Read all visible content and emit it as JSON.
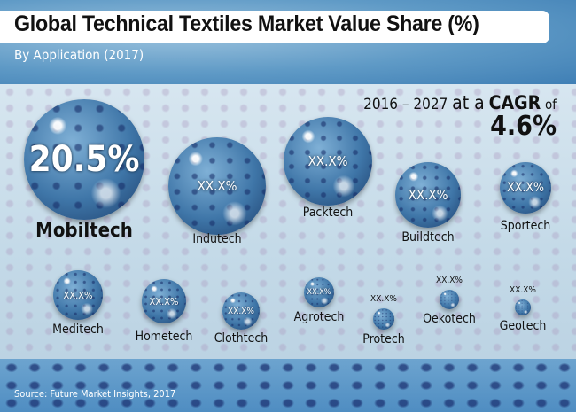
{
  "header": {
    "title": "Global Technical Textiles Market Value Share (%)",
    "subtitle": "By Application (2017)"
  },
  "cagr": {
    "period": "2016 – 2027",
    "at_a": "at a",
    "label": "CAGR",
    "of": "of",
    "value": "4.6%"
  },
  "source": "Source: Future Market Insights, 2017",
  "chart_data": {
    "type": "bubble",
    "title": "Global Technical Textiles Market Value Share (%)",
    "subtitle": "By Application (2017)",
    "unit": "%",
    "categories": [
      "Mobiltech",
      "Indutech",
      "Packtech",
      "Buildtech",
      "Sportech",
      "Meditech",
      "Hometech",
      "Clothtech",
      "Agrotech",
      "Protech",
      "Oekotech",
      "Geotech"
    ],
    "values": [
      "20.5%",
      "XX.X%",
      "XX.X%",
      "XX.X%",
      "XX.X%",
      "XX.X%",
      "XX.X%",
      "XX.X%",
      "XX.X%",
      "XX.X%",
      "XX.X%",
      "XX.X%"
    ],
    "size_rank": [
      1,
      2,
      3,
      4,
      5,
      6,
      7,
      8,
      9,
      10,
      11,
      12
    ],
    "colors": {
      "bubble": "#3f76a8",
      "background": "#c7dbe9",
      "header": "#5f9ac6"
    }
  }
}
